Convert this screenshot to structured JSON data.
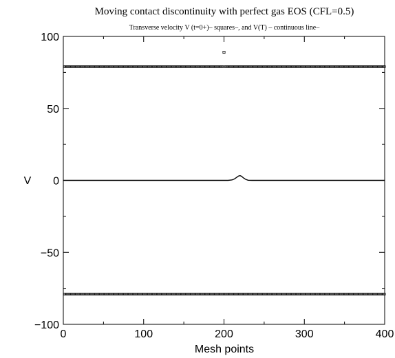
{
  "chart_data": {
    "type": "scatter",
    "title": "Moving contact discontinuity with perfect gas EOS (CFL=0.5)",
    "subtitle": "Transverse velocity V (t=0+)– squares–,  and V(T) – continuous line–",
    "xlabel": "Mesh points",
    "ylabel": "V",
    "xlim": [
      0,
      400
    ],
    "ylim": [
      -100,
      100
    ],
    "xticks": [
      0,
      100,
      200,
      300,
      400
    ],
    "yticks": [
      -100,
      -50,
      0,
      50,
      100
    ],
    "xtick_labels": [
      "0",
      "100",
      "200",
      "300",
      "400"
    ],
    "ytick_labels": [
      "−100",
      "−50",
      "0",
      "50",
      "100"
    ],
    "grid": false,
    "series": [
      {
        "marker": "square",
        "segments": [
          {
            "x_start": 1,
            "x_end": 199,
            "y": 79
          },
          {
            "x_start": 201,
            "x_end": 400,
            "y": 79
          },
          {
            "x_start": 1,
            "x_end": 400,
            "y": -79
          }
        ],
        "outliers": [
          {
            "x": 200,
            "y": 89
          }
        ]
      },
      {
        "style": "line",
        "x": [
          0,
          200,
          205,
          210,
          213,
          216,
          218,
          220,
          222,
          224,
          227,
          230,
          235,
          240,
          400
        ],
        "y": [
          0,
          0,
          0,
          0.3,
          1.0,
          2.2,
          3.0,
          3.3,
          2.8,
          1.8,
          0.7,
          0.1,
          0,
          0,
          0
        ]
      }
    ]
  }
}
